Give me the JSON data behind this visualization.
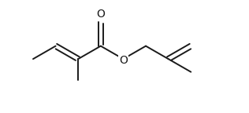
{
  "bg_color": "#ffffff",
  "line_color": "#1a1a1a",
  "line_width": 1.4,
  "figure_width": 3.16,
  "figure_height": 1.44,
  "dpi": 100,
  "O_fontsize": 10,
  "O_ester_fontsize": 10
}
